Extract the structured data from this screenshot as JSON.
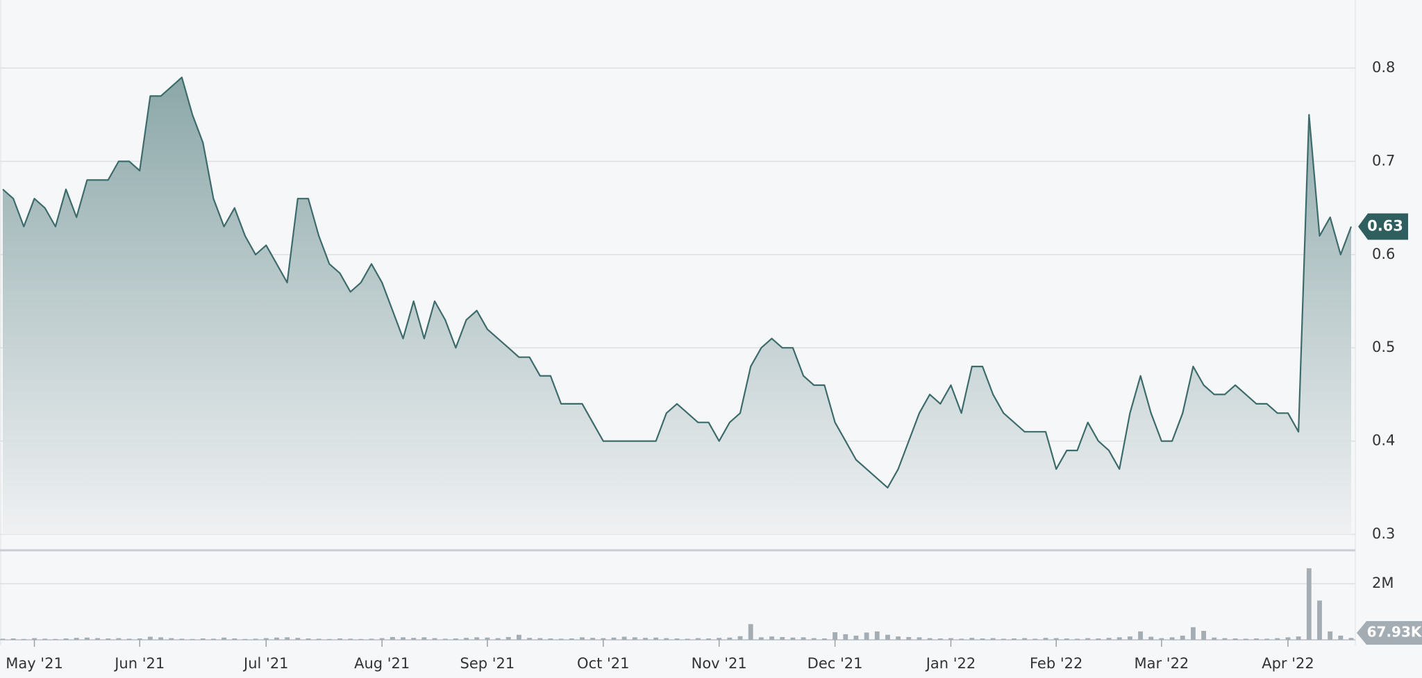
{
  "chart_data": [
    {
      "type": "area",
      "color": "#3d6b6b",
      "grid": true,
      "categories": [
        null,
        null,
        null,
        "May '21",
        null,
        null,
        null,
        null,
        null,
        null,
        null,
        null,
        null,
        "Jun '21",
        null,
        null,
        null,
        null,
        null,
        null,
        null,
        null,
        null,
        null,
        null,
        "Jul '21",
        null,
        null,
        null,
        null,
        null,
        null,
        null,
        null,
        null,
        null,
        "Aug '21",
        null,
        null,
        null,
        null,
        null,
        null,
        null,
        null,
        null,
        "Sep '21",
        null,
        null,
        null,
        null,
        null,
        null,
        null,
        null,
        null,
        null,
        "Oct '21",
        null,
        null,
        null,
        null,
        null,
        null,
        null,
        null,
        null,
        null,
        "Nov '21",
        null,
        null,
        null,
        null,
        null,
        null,
        null,
        null,
        null,
        null,
        "Dec '21",
        null,
        null,
        null,
        null,
        null,
        null,
        null,
        null,
        null,
        null,
        "Jan '22",
        null,
        null,
        null,
        null,
        null,
        null,
        null,
        null,
        null,
        "Feb '22",
        null,
        null,
        null,
        null,
        null,
        null,
        null,
        null,
        null,
        "Mar '22",
        null,
        null,
        null,
        null,
        null,
        null,
        null,
        null,
        null,
        null,
        null,
        "Apr '22",
        null,
        null,
        null,
        null,
        null,
        null
      ],
      "values": [
        0.67,
        0.66,
        0.63,
        0.66,
        0.65,
        0.63,
        0.67,
        0.64,
        0.68,
        0.68,
        0.68,
        0.7,
        0.7,
        0.69,
        0.77,
        0.77,
        0.78,
        0.79,
        0.75,
        0.72,
        0.66,
        0.63,
        0.65,
        0.62,
        0.6,
        0.61,
        0.59,
        0.57,
        0.66,
        0.66,
        0.62,
        0.59,
        0.58,
        0.56,
        0.57,
        0.59,
        0.57,
        0.54,
        0.51,
        0.55,
        0.51,
        0.55,
        0.53,
        0.5,
        0.53,
        0.54,
        0.52,
        0.51,
        0.5,
        0.49,
        0.49,
        0.47,
        0.47,
        0.44,
        0.44,
        0.44,
        0.42,
        0.4,
        0.4,
        0.4,
        0.4,
        0.4,
        0.4,
        0.43,
        0.44,
        0.43,
        0.42,
        0.42,
        0.4,
        0.42,
        0.43,
        0.48,
        0.5,
        0.51,
        0.5,
        0.5,
        0.47,
        0.46,
        0.46,
        0.42,
        0.4,
        0.38,
        0.37,
        0.36,
        0.35,
        0.37,
        0.4,
        0.43,
        0.45,
        0.44,
        0.46,
        0.43,
        0.48,
        0.48,
        0.45,
        0.43,
        0.42,
        0.41,
        0.41,
        0.41,
        0.37,
        0.39,
        0.39,
        0.42,
        0.4,
        0.39,
        0.37,
        0.43,
        0.47,
        0.43,
        0.4,
        0.4,
        0.43,
        0.48,
        0.46,
        0.45,
        0.45,
        0.46,
        0.45,
        0.44,
        0.44,
        0.43,
        0.43,
        0.41,
        0.75,
        0.62,
        0.64,
        0.6,
        0.63
      ],
      "ylim": [
        0.3,
        0.873
      ],
      "yticks": [
        0.3,
        0.4,
        0.5,
        0.6,
        0.7,
        0.8
      ]
    },
    {
      "type": "bar",
      "color": "#a4adb4",
      "values": [
        40000,
        50000,
        30000,
        60000,
        40000,
        30000,
        50000,
        70000,
        80000,
        60000,
        50000,
        60000,
        40000,
        50000,
        110000,
        90000,
        60000,
        40000,
        30000,
        50000,
        40000,
        80000,
        50000,
        30000,
        40000,
        60000,
        80000,
        90000,
        70000,
        50000,
        40000,
        30000,
        50000,
        40000,
        30000,
        40000,
        60000,
        100000,
        90000,
        70000,
        90000,
        60000,
        40000,
        50000,
        70000,
        90000,
        80000,
        60000,
        100000,
        180000,
        70000,
        60000,
        50000,
        40000,
        50000,
        90000,
        70000,
        60000,
        80000,
        110000,
        90000,
        70000,
        80000,
        60000,
        50000,
        40000,
        60000,
        50000,
        70000,
        80000,
        130000,
        560000,
        90000,
        120000,
        100000,
        80000,
        90000,
        60000,
        50000,
        270000,
        200000,
        150000,
        260000,
        300000,
        180000,
        120000,
        100000,
        90000,
        60000,
        50000,
        60000,
        40000,
        70000,
        50000,
        60000,
        40000,
        50000,
        60000,
        40000,
        70000,
        60000,
        50000,
        40000,
        60000,
        50000,
        70000,
        90000,
        120000,
        300000,
        110000,
        60000,
        90000,
        150000,
        450000,
        320000,
        80000,
        60000,
        50000,
        40000,
        50000,
        40000,
        60000,
        90000,
        120000,
        2550000,
        1400000,
        300000,
        150000,
        67930
      ],
      "last_value_label": "67.93K",
      "ylim": [
        0,
        3140000
      ],
      "yticks": [
        {
          "value": 2000000,
          "label": "2M"
        }
      ]
    }
  ]
}
